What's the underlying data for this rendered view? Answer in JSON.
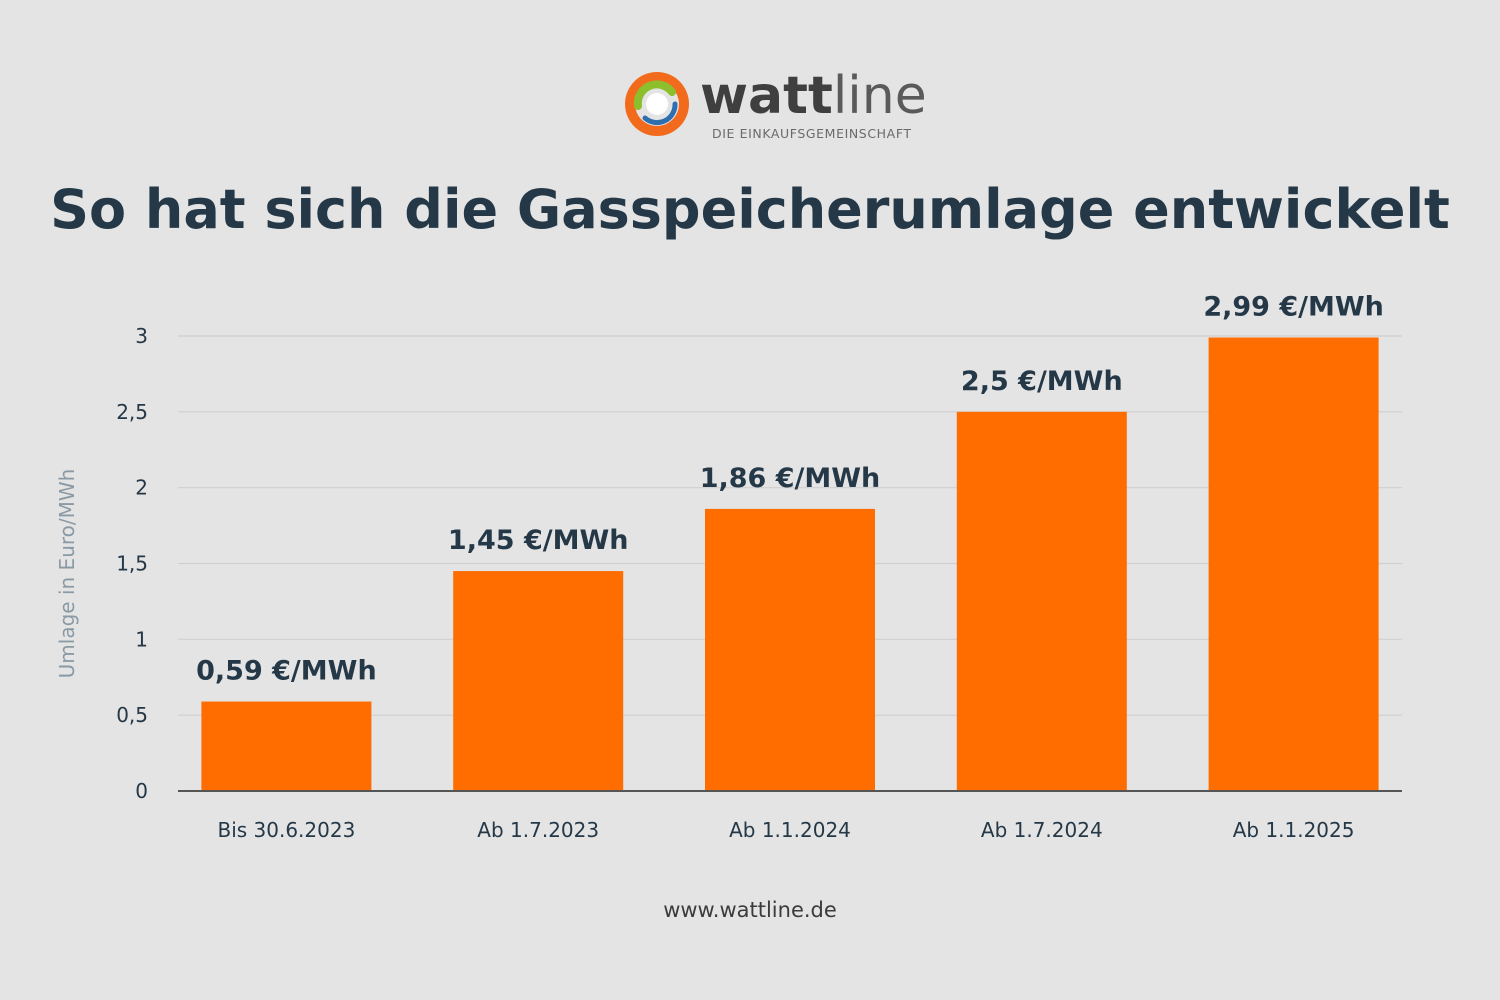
{
  "logo": {
    "brand_bold": "watt",
    "brand_light": "line",
    "tagline": "DIE EINKAUFSGEMEINSCHAFT",
    "colors": {
      "orange": "#f26b1d",
      "green": "#8dbf2d",
      "blue": "#2f6fb0"
    }
  },
  "title": "So hat sich die Gasspeicherumlage entwickelt",
  "footer": "www.wattline.de",
  "chart_data": {
    "type": "bar",
    "title": "So hat sich die Gasspeicherumlage entwickelt",
    "xlabel": "",
    "ylabel": "Umlage in Euro/MWh",
    "ylim": [
      0,
      3
    ],
    "yticks": [
      0,
      0.5,
      1,
      1.5,
      2,
      2.5,
      3
    ],
    "ytick_labels": [
      "0",
      "0,5",
      "1",
      "1,5",
      "2",
      "2,5",
      "3"
    ],
    "grid": true,
    "categories": [
      "Bis 30.6.2023",
      "Ab 1.7.2023",
      "Ab 1.1.2024",
      "Ab 1.7.2024",
      "Ab 1.1.2025"
    ],
    "values": [
      0.59,
      1.45,
      1.86,
      2.5,
      2.99
    ],
    "data_labels": [
      "0,59 €/MWh",
      "1,45 €/MWh",
      "1,86 €/MWh",
      "2,5 €/MWh",
      "2,99 €/MWh"
    ],
    "bar_color": "#ff6c00",
    "text_color": "#243847",
    "grid_color": "#cfcfcf",
    "axis_color": "#555555",
    "ylabel_color": "#8a9aa5"
  }
}
